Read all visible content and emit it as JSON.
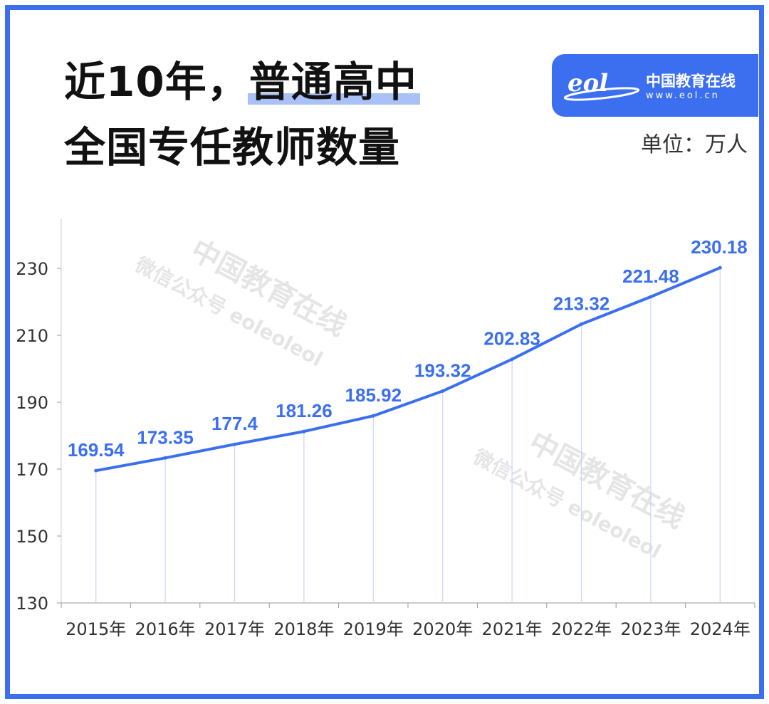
{
  "header": {
    "title_line1_prefix": "近10年，",
    "title_line1_highlight": "普通高中",
    "title_line2": "全国专任教师数量"
  },
  "logo": {
    "mark": "eol",
    "name": "中国教育在线",
    "url": "www.eol.cn"
  },
  "unit_label": "单位：万人",
  "watermark": {
    "line1": "中国教育在线",
    "line2": "微信公众号 eoleoleol"
  },
  "colors": {
    "frame": "#3b6ff0",
    "line": "#3b6ff0",
    "labels": "#3b6ff0",
    "highlight": "#a9c1f7"
  },
  "chart_data": {
    "type": "line",
    "title": "近10年，普通高中全国专任教师数量",
    "xlabel": "",
    "ylabel": "",
    "unit": "万人",
    "categories": [
      "2015年",
      "2016年",
      "2017年",
      "2018年",
      "2019年",
      "2020年",
      "2021年",
      "2022年",
      "2023年",
      "2024年"
    ],
    "values": [
      169.54,
      173.35,
      177.4,
      181.26,
      185.92,
      193.32,
      202.83,
      213.32,
      221.48,
      230.18
    ],
    "data_labels": [
      "169.54",
      "173.35",
      "177.4",
      "181.26",
      "185.92",
      "193.32",
      "202.83",
      "213.32",
      "221.48",
      "230.18"
    ],
    "ylim": [
      130,
      245
    ],
    "yticks": [
      130,
      150,
      170,
      190,
      210,
      230
    ],
    "grid": false,
    "legend": "none"
  }
}
